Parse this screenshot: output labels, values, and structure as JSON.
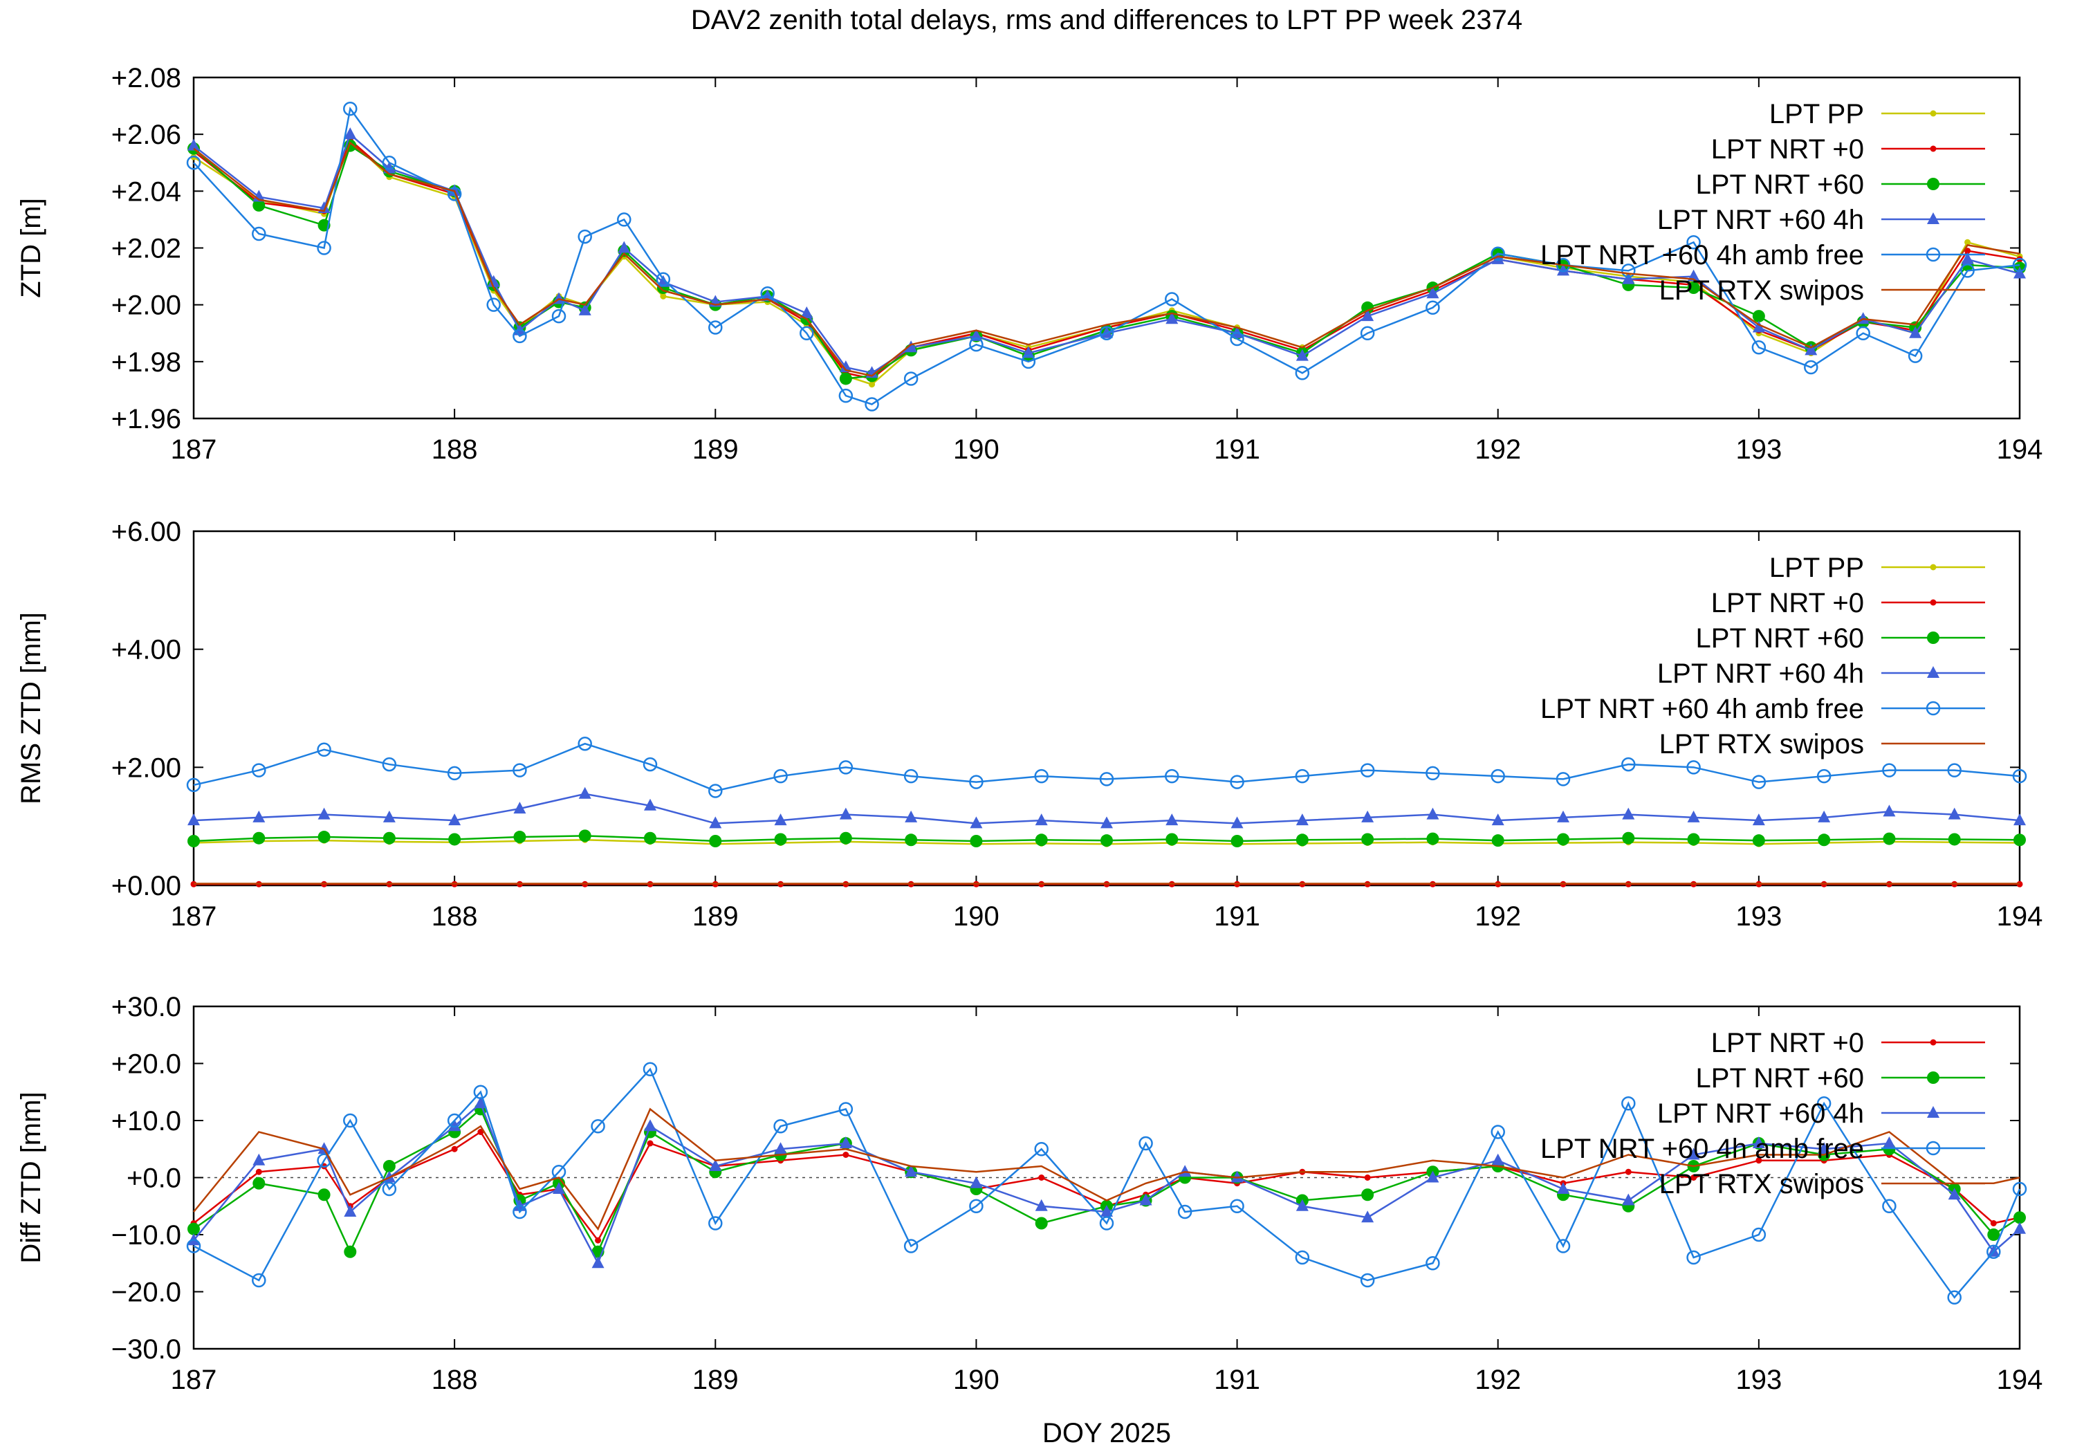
{
  "title": "DAV2 zenith total delays, rms and differences to LPT PP week 2374",
  "xlabel": "DOY 2025",
  "colors": {
    "pp": "#c8c800",
    "nrt0": "#e00000",
    "nrt60": "#00b000",
    "nrt60_4h": "#4060d8",
    "amb_free": "#1e7fe0",
    "rtx": "#b84000"
  },
  "chart_data": [
    {
      "type": "line",
      "id": "ztd",
      "ylabel": "ZTD [m]",
      "xlim": [
        187,
        194
      ],
      "ylim": [
        1.96,
        2.08
      ],
      "xticks": [
        "187",
        "188",
        "189",
        "190",
        "191",
        "192",
        "193",
        "194"
      ],
      "yticks": [
        "+1.96",
        "+1.98",
        "+2.00",
        "+2.02",
        "+2.04",
        "+2.06",
        "+2.08"
      ],
      "legend": [
        "LPT PP",
        "LPT NRT +0",
        "LPT NRT +60",
        "LPT NRT +60 4h",
        "LPT NRT +60 4h amb free",
        "LPT RTX swipos"
      ],
      "legend_position": "top-right",
      "x": [
        187.0,
        187.25,
        187.5,
        187.6,
        187.75,
        188.0,
        188.15,
        188.25,
        188.4,
        188.5,
        188.65,
        188.8,
        189.0,
        189.2,
        189.35,
        189.5,
        189.6,
        189.75,
        190.0,
        190.2,
        190.5,
        190.75,
        191.0,
        191.25,
        191.5,
        191.75,
        192.0,
        192.25,
        192.5,
        192.75,
        193.0,
        193.2,
        193.4,
        193.6,
        193.8,
        194.0
      ],
      "series": [
        {
          "name": "LPT PP",
          "key": "pp",
          "marker": "dot",
          "values": [
            2.052,
            2.037,
            2.032,
            2.058,
            2.045,
            2.038,
            2.005,
            1.992,
            2.003,
            2.0,
            2.017,
            2.003,
            2.0,
            2.001,
            1.993,
            1.975,
            1.972,
            1.984,
            1.99,
            1.985,
            1.992,
            1.998,
            1.992,
            1.985,
            1.998,
            2.006,
            2.017,
            2.013,
            2.01,
            2.008,
            1.99,
            1.983,
            1.995,
            1.99,
            2.022,
            2.017
          ]
        },
        {
          "name": "LPT NRT +0",
          "key": "nrt0",
          "marker": "dot",
          "values": [
            2.054,
            2.036,
            2.033,
            2.058,
            2.046,
            2.039,
            2.006,
            1.993,
            2.002,
            2.0,
            2.018,
            2.005,
            2.0,
            2.002,
            1.994,
            1.976,
            1.974,
            1.985,
            1.99,
            1.984,
            1.992,
            1.997,
            1.991,
            1.984,
            1.997,
            2.005,
            2.016,
            2.012,
            2.009,
            2.007,
            1.991,
            1.984,
            1.994,
            1.991,
            2.019,
            2.016
          ]
        },
        {
          "name": "LPT NRT +60",
          "key": "nrt60",
          "marker": "circle-filled",
          "values": [
            2.055,
            2.035,
            2.028,
            2.056,
            2.047,
            2.04,
            2.007,
            1.992,
            2.001,
            1.999,
            2.019,
            2.006,
            2.0,
            2.003,
            1.995,
            1.974,
            1.975,
            1.984,
            1.989,
            1.982,
            1.991,
            1.996,
            1.99,
            1.983,
            1.999,
            2.006,
            2.018,
            2.014,
            2.007,
            2.006,
            1.996,
            1.985,
            1.994,
            1.992,
            2.014,
            2.013
          ]
        },
        {
          "name": "LPT NRT +60 4h",
          "key": "nrt60_4h",
          "marker": "triangle",
          "values": [
            2.056,
            2.038,
            2.034,
            2.06,
            2.048,
            2.04,
            2.008,
            1.991,
            2.002,
            1.998,
            2.02,
            2.008,
            2.001,
            2.003,
            1.997,
            1.978,
            1.976,
            1.985,
            1.989,
            1.983,
            1.99,
            1.995,
            1.99,
            1.982,
            1.996,
            2.004,
            2.016,
            2.012,
            2.009,
            2.01,
            1.992,
            1.984,
            1.995,
            1.99,
            2.016,
            2.011
          ]
        },
        {
          "name": "LPT NRT +60 4h amb free",
          "key": "amb_free",
          "marker": "circle-open",
          "values": [
            2.05,
            2.025,
            2.02,
            2.069,
            2.05,
            2.039,
            2.0,
            1.989,
            1.996,
            2.024,
            2.03,
            2.009,
            1.992,
            2.004,
            1.99,
            1.968,
            1.965,
            1.974,
            1.986,
            1.98,
            1.99,
            2.002,
            1.988,
            1.976,
            1.99,
            1.999,
            2.018,
            2.014,
            2.012,
            2.022,
            1.985,
            1.978,
            1.99,
            1.982,
            2.012,
            2.014
          ]
        },
        {
          "name": "LPT RTX swipos",
          "key": "rtx",
          "marker": "none",
          "values": [
            2.055,
            2.037,
            2.033,
            2.057,
            2.046,
            2.04,
            2.006,
            1.993,
            2.002,
            2.0,
            2.018,
            2.005,
            2.0,
            2.002,
            1.995,
            1.977,
            1.975,
            1.986,
            1.991,
            1.986,
            1.993,
            1.997,
            1.992,
            1.985,
            1.998,
            2.006,
            2.017,
            2.014,
            2.011,
            2.009,
            1.993,
            1.985,
            1.995,
            1.993,
            2.021,
            2.018
          ]
        }
      ]
    },
    {
      "type": "line",
      "id": "rms",
      "ylabel": "RMS ZTD [mm]",
      "xlim": [
        187,
        194
      ],
      "ylim": [
        0,
        6
      ],
      "xticks": [
        "187",
        "188",
        "189",
        "190",
        "191",
        "192",
        "193",
        "194"
      ],
      "yticks": [
        "+0.00",
        "+2.00",
        "+4.00",
        "+6.00"
      ],
      "legend": [
        "LPT PP",
        "LPT NRT +0",
        "LPT NRT +60",
        "LPT NRT +60 4h",
        "LPT NRT +60 4h amb free",
        "LPT RTX swipos"
      ],
      "legend_position": "top-right",
      "x": [
        187.0,
        187.25,
        187.5,
        187.75,
        188.0,
        188.25,
        188.5,
        188.75,
        189.0,
        189.25,
        189.5,
        189.75,
        190.0,
        190.25,
        190.5,
        190.75,
        191.0,
        191.25,
        191.5,
        191.75,
        192.0,
        192.25,
        192.5,
        192.75,
        193.0,
        193.25,
        193.5,
        193.75,
        194.0
      ],
      "series": [
        {
          "name": "LPT PP",
          "key": "pp",
          "marker": "dot",
          "values": [
            0.72,
            0.75,
            0.76,
            0.74,
            0.73,
            0.75,
            0.77,
            0.74,
            0.7,
            0.72,
            0.74,
            0.72,
            0.7,
            0.71,
            0.7,
            0.72,
            0.7,
            0.71,
            0.72,
            0.73,
            0.71,
            0.72,
            0.73,
            0.72,
            0.7,
            0.72,
            0.74,
            0.73,
            0.72
          ]
        },
        {
          "name": "LPT NRT +0",
          "key": "nrt0",
          "marker": "dot",
          "values": [
            0.02,
            0.02,
            0.02,
            0.02,
            0.02,
            0.02,
            0.02,
            0.02,
            0.02,
            0.02,
            0.02,
            0.02,
            0.02,
            0.02,
            0.02,
            0.02,
            0.02,
            0.02,
            0.02,
            0.02,
            0.02,
            0.02,
            0.02,
            0.02,
            0.02,
            0.02,
            0.02,
            0.02,
            0.02
          ]
        },
        {
          "name": "LPT NRT +60",
          "key": "nrt60",
          "marker": "circle-filled",
          "values": [
            0.75,
            0.8,
            0.82,
            0.8,
            0.78,
            0.82,
            0.84,
            0.8,
            0.75,
            0.78,
            0.8,
            0.77,
            0.75,
            0.77,
            0.76,
            0.78,
            0.75,
            0.77,
            0.78,
            0.79,
            0.76,
            0.78,
            0.8,
            0.78,
            0.76,
            0.77,
            0.79,
            0.78,
            0.77
          ]
        },
        {
          "name": "LPT NRT +60 4h",
          "key": "nrt60_4h",
          "marker": "triangle",
          "values": [
            1.1,
            1.15,
            1.2,
            1.15,
            1.1,
            1.3,
            1.55,
            1.35,
            1.05,
            1.1,
            1.2,
            1.15,
            1.05,
            1.1,
            1.05,
            1.1,
            1.05,
            1.1,
            1.15,
            1.2,
            1.1,
            1.15,
            1.2,
            1.15,
            1.1,
            1.15,
            1.25,
            1.2,
            1.1
          ]
        },
        {
          "name": "LPT NRT +60 4h amb free",
          "key": "amb_free",
          "marker": "circle-open",
          "values": [
            1.7,
            1.95,
            2.3,
            2.05,
            1.9,
            1.95,
            2.4,
            2.05,
            1.6,
            1.85,
            2.0,
            1.85,
            1.75,
            1.85,
            1.8,
            1.85,
            1.75,
            1.85,
            1.95,
            1.9,
            1.85,
            1.8,
            2.05,
            2.0,
            1.75,
            1.85,
            1.95,
            1.95,
            1.85
          ]
        },
        {
          "name": "LPT RTX swipos",
          "key": "rtx",
          "marker": "none",
          "values": [
            0.03,
            0.03,
            0.03,
            0.03,
            0.03,
            0.03,
            0.03,
            0.03,
            0.03,
            0.03,
            0.03,
            0.03,
            0.03,
            0.03,
            0.03,
            0.03,
            0.03,
            0.03,
            0.03,
            0.03,
            0.03,
            0.03,
            0.03,
            0.03,
            0.03,
            0.03,
            0.03,
            0.03,
            0.03
          ]
        }
      ]
    },
    {
      "type": "line",
      "id": "diff",
      "ylabel": "Diff ZTD [mm]",
      "xlim": [
        187,
        194
      ],
      "ylim": [
        -30,
        30
      ],
      "zero_line": true,
      "xticks": [
        "187",
        "188",
        "189",
        "190",
        "191",
        "192",
        "193",
        "194"
      ],
      "yticks": [
        "−30.0",
        "−20.0",
        "−10.0",
        "+0.0",
        "+10.0",
        "+20.0",
        "+30.0"
      ],
      "legend": [
        "LPT NRT +0",
        "LPT NRT +60",
        "LPT NRT +60 4h",
        "LPT NRT +60 4h amb free",
        "LPT RTX swipos"
      ],
      "legend_position": "top-right",
      "x": [
        187.0,
        187.25,
        187.5,
        187.6,
        187.75,
        188.0,
        188.1,
        188.25,
        188.4,
        188.55,
        188.75,
        189.0,
        189.25,
        189.5,
        189.75,
        190.0,
        190.25,
        190.5,
        190.65,
        190.8,
        191.0,
        191.25,
        191.5,
        191.75,
        192.0,
        192.25,
        192.5,
        192.75,
        193.0,
        193.25,
        193.5,
        193.75,
        193.9,
        194.0
      ],
      "series": [
        {
          "name": "LPT NRT +0",
          "key": "nrt0",
          "marker": "dot",
          "values": [
            -8,
            1,
            2,
            -5,
            0,
            5,
            8,
            -3,
            -2,
            -11,
            6,
            2,
            3,
            4,
            1,
            -2,
            0,
            -5,
            -3,
            0,
            -1,
            1,
            0,
            1,
            2,
            -1,
            1,
            0,
            3,
            3,
            4,
            -2,
            -8,
            -7
          ]
        },
        {
          "name": "LPT NRT +60",
          "key": "nrt60",
          "marker": "circle-filled",
          "values": [
            -9,
            -1,
            -3,
            -13,
            2,
            8,
            12,
            -4,
            -1,
            -13,
            8,
            1,
            4,
            6,
            1,
            -2,
            -8,
            -5,
            -4,
            0,
            0,
            -4,
            -3,
            1,
            2,
            -3,
            -5,
            2,
            6,
            4,
            5,
            -2,
            -10,
            -7
          ]
        },
        {
          "name": "LPT NRT +60 4h",
          "key": "nrt60_4h",
          "marker": "triangle",
          "values": [
            -11,
            3,
            5,
            -6,
            0,
            9,
            13,
            -5,
            -2,
            -15,
            9,
            2,
            5,
            6,
            1,
            -1,
            -5,
            -6,
            -4,
            1,
            0,
            -5,
            -7,
            0,
            3,
            -2,
            -4,
            4,
            6,
            5,
            6,
            -3,
            -13,
            -9
          ]
        },
        {
          "name": "LPT NRT +60 4h amb free",
          "key": "amb_free",
          "marker": "circle-open",
          "values": [
            -12,
            -18,
            3,
            10,
            -2,
            10,
            15,
            -6,
            1,
            9,
            19,
            -8,
            9,
            12,
            -12,
            -5,
            5,
            -8,
            6,
            -6,
            -5,
            -14,
            -18,
            -15,
            8,
            -12,
            13,
            -14,
            -10,
            13,
            -5,
            -21,
            -13,
            -2
          ]
        },
        {
          "name": "LPT RTX swipos",
          "key": "rtx",
          "marker": "none",
          "values": [
            -6,
            8,
            5,
            -3,
            0,
            6,
            9,
            -2,
            0,
            -9,
            12,
            3,
            4,
            5,
            2,
            1,
            2,
            -4,
            -1,
            1,
            0,
            1,
            1,
            3,
            2,
            0,
            4,
            2,
            4,
            4,
            8,
            -1,
            -1,
            0
          ]
        }
      ]
    }
  ]
}
